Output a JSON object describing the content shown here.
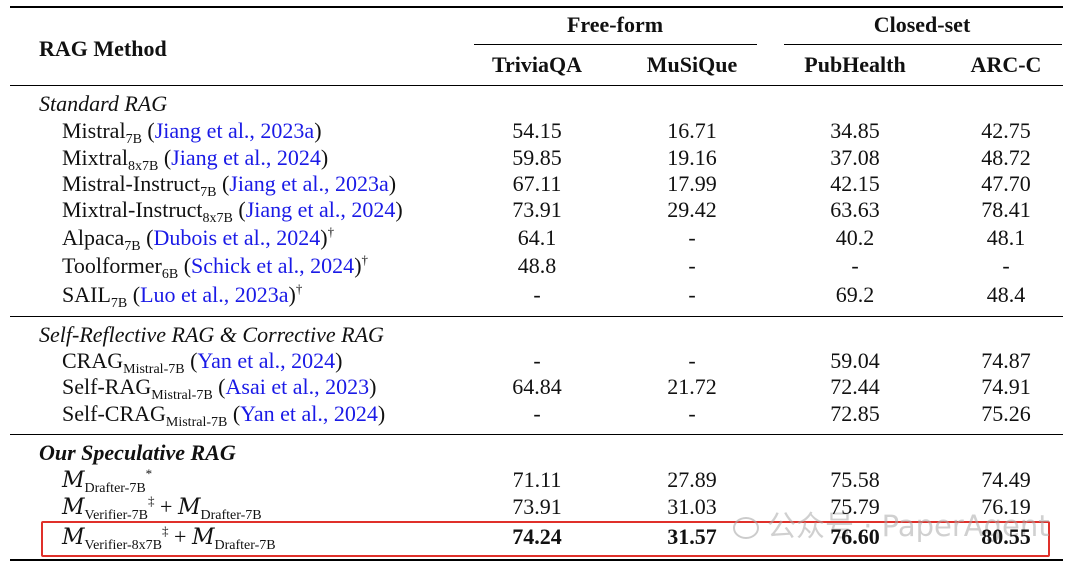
{
  "header": {
    "method_label": "RAG Method",
    "group_freeform": "Free-form",
    "group_closedset": "Closed-set",
    "columns": [
      "TriviaQA",
      "MuSiQue",
      "PubHealth",
      "ARC-C"
    ]
  },
  "sections": [
    {
      "title": "Standard RAG",
      "rows": [
        {
          "model": "Mistral",
          "sub": "7B",
          "cite": "Jiang et al., 2023a",
          "sup": "",
          "values": [
            "54.15",
            "16.71",
            "34.85",
            "42.75"
          ]
        },
        {
          "model": "Mixtral",
          "sub": "8x7B",
          "cite": "Jiang et al., 2024",
          "sup": "",
          "values": [
            "59.85",
            "19.16",
            "37.08",
            "48.72"
          ]
        },
        {
          "model": "Mistral-Instruct",
          "sub": "7B",
          "cite": "Jiang et al., 2023a",
          "sup": "",
          "values": [
            "67.11",
            "17.99",
            "42.15",
            "47.70"
          ]
        },
        {
          "model": "Mixtral-Instruct",
          "sub": "8x7B",
          "cite": "Jiang et al., 2024",
          "sup": "",
          "values": [
            "73.91",
            "29.42",
            "63.63",
            "78.41"
          ]
        },
        {
          "model": "Alpaca",
          "sub": "7B",
          "cite": "Dubois et al., 2024",
          "sup": "†",
          "values": [
            "64.1",
            "-",
            "40.2",
            "48.1"
          ]
        },
        {
          "model": "Toolformer",
          "sub": "6B",
          "cite": "Schick et al., 2024",
          "sup": "†",
          "values": [
            "48.8",
            "-",
            "-",
            "-"
          ]
        },
        {
          "model": "SAIL",
          "sub": "7B",
          "cite": "Luo et al., 2023a",
          "sup": "†",
          "values": [
            "-",
            "-",
            "69.2",
            "48.4"
          ]
        }
      ]
    },
    {
      "title": "Self-Reflective RAG & Corrective RAG",
      "rows": [
        {
          "model": "CRAG",
          "sub": "Mistral-7B",
          "cite": "Yan et al., 2024",
          "sup": "",
          "values": [
            "-",
            "-",
            "59.04",
            "74.87"
          ]
        },
        {
          "model": "Self-RAG",
          "sub": "Mistral-7B",
          "cite": "Asai et al., 2023",
          "sup": "",
          "values": [
            "64.84",
            "21.72",
            "72.44",
            "74.91"
          ]
        },
        {
          "model": "Self-CRAG",
          "sub": "Mistral-7B",
          "cite": "Yan et al., 2024",
          "sup": "",
          "values": [
            "-",
            "-",
            "72.85",
            "75.26"
          ]
        }
      ]
    },
    {
      "title": "Our Speculative RAG",
      "rows": [
        {
          "symbol": "M",
          "sub": "Drafter-7B",
          "sup": "*",
          "values": [
            "71.11",
            "27.89",
            "75.58",
            "74.49"
          ]
        },
        {
          "symbol": "M",
          "sub": "Verifier-7B",
          "sup": "‡",
          "plus": "+",
          "symbol2": "M",
          "sub2": "Drafter-7B",
          "values": [
            "73.91",
            "31.03",
            "75.79",
            "76.19"
          ]
        },
        {
          "symbol": "M",
          "sub": "Verifier-8x7B",
          "sup": "‡",
          "plus": "+",
          "symbol2": "M",
          "sub2": "Drafter-7B",
          "values": [
            "74.24",
            "31.57",
            "76.60",
            "80.55"
          ],
          "bold": true
        }
      ]
    }
  ],
  "watermark": "公众号 · PaperAgent",
  "colors": {
    "citation": "#1a1ae6",
    "highlight_box": "#e0302a",
    "rules": "#000000"
  }
}
